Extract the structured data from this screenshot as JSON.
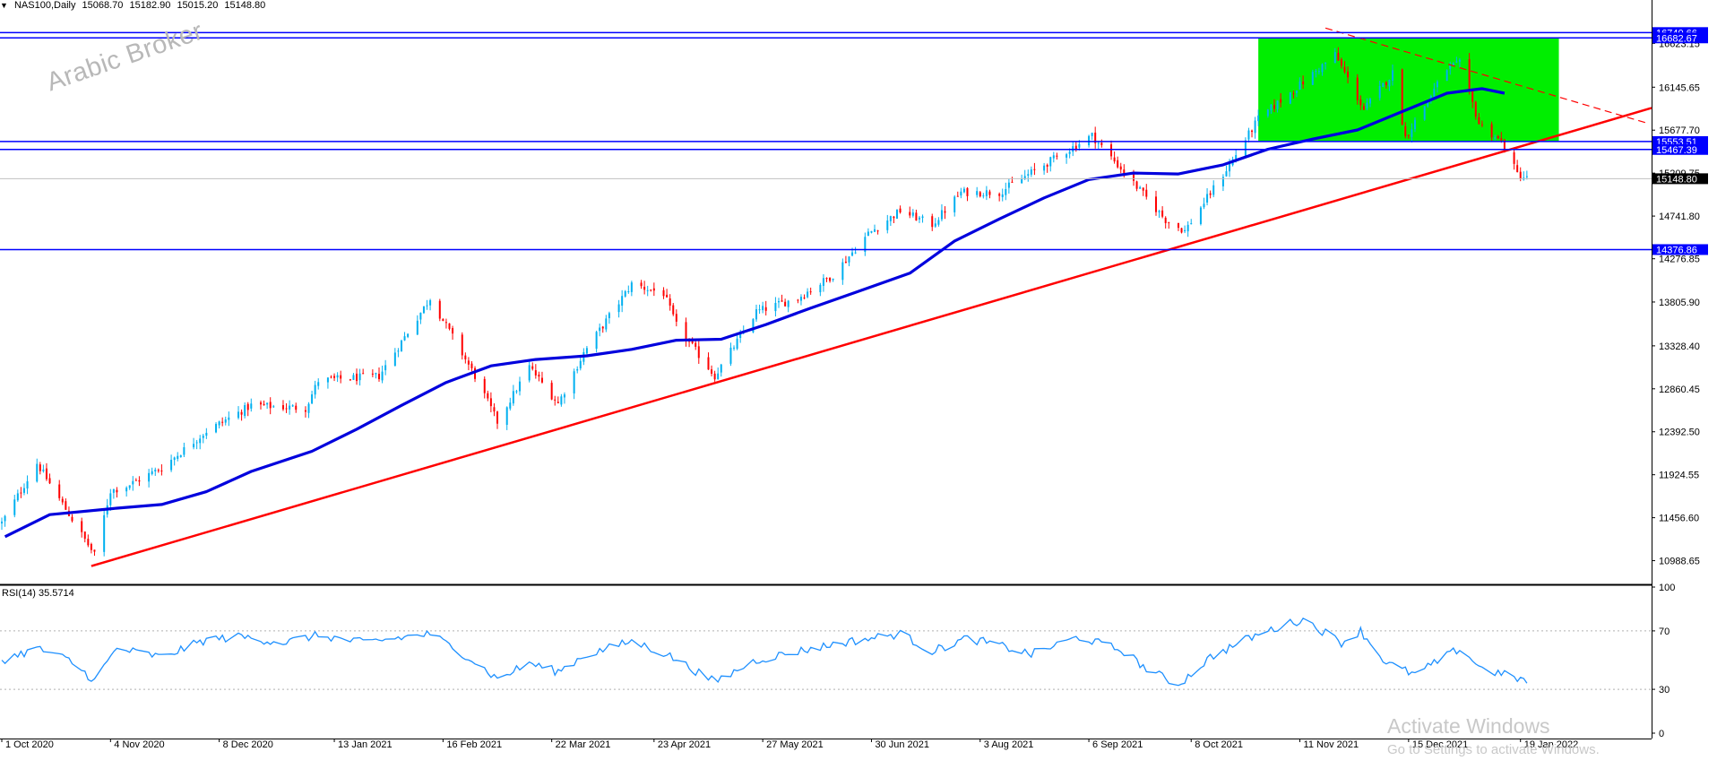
{
  "header": {
    "symbol": "NAS100,Daily",
    "open": "15068.70",
    "high": "15182.90",
    "low": "15015.20",
    "close": "15148.80"
  },
  "watermark": "Arabic Broker",
  "activation": {
    "title": "Activate Windows",
    "subtitle": "Go to Settings to activate Windows."
  },
  "colors": {
    "bull": "#00b0f0",
    "bear": "#ff0000",
    "ma": "#0000dd",
    "level": "#0000ff",
    "trend": "#ff0000",
    "zone": "#00ee00",
    "rsi": "#1e90ff"
  },
  "chart_data": [
    {
      "type": "candlestick",
      "ylim": [
        10750,
        16900
      ],
      "y_ticks": [
        "16623.15",
        "16145.65",
        "15677.70",
        "15209.75",
        "14741.80",
        "14276.85",
        "13805.90",
        "13328.40",
        "12860.45",
        "12392.50",
        "11924.55",
        "11456.60",
        "10988.65"
      ],
      "x_ticks": [
        "1 Oct 2020",
        "4 Nov 2020",
        "8 Dec 2020",
        "13 Jan 2021",
        "16 Feb 2021",
        "22 Mar 2021",
        "23 Apr 2021",
        "27 May 2021",
        "30 Jun 2021",
        "3 Aug 2021",
        "6 Sep 2021",
        "8 Oct 2021",
        "11 Nov 2021",
        "15 Dec 2021",
        "19 Jan 2022"
      ],
      "current_price": "15148.80",
      "horizontal_levels": [
        "16740.66",
        "16682.67",
        "15553.51",
        "15467.39",
        "14376.86"
      ],
      "range_box": {
        "from": "29 Oct 2021",
        "to": "31 Jan 2022",
        "low": 15550,
        "high": 16682
      },
      "trendlines": [
        {
          "style": "solid",
          "from": [
            "29 Oct 2020",
            10930
          ],
          "to": [
            "19 Jan 2022",
            15500
          ]
        },
        {
          "style": "dashed",
          "from": [
            "19 Nov 2021",
            16790
          ],
          "to": [
            "28 Feb 2022",
            15750
          ]
        }
      ],
      "moving_average_points": [
        [
          "2 Oct 2020",
          11250
        ],
        [
          "16 Oct 2020",
          11490
        ],
        [
          "6 Nov 2020",
          11560
        ],
        [
          "20 Nov 2020",
          11600
        ],
        [
          "4 Dec 2020",
          11740
        ],
        [
          "18 Dec 2020",
          11960
        ],
        [
          "6 Jan 2021",
          12180
        ],
        [
          "20 Jan 2021",
          12420
        ],
        [
          "3 Feb 2021",
          12680
        ],
        [
          "17 Feb 2021",
          12930
        ],
        [
          "3 Mar 2021",
          13110
        ],
        [
          "17 Mar 2021",
          13180
        ],
        [
          "2 Apr 2021",
          13220
        ],
        [
          "16 Apr 2021",
          13290
        ],
        [
          "30 Apr 2021",
          13390
        ],
        [
          "14 May 2021",
          13400
        ],
        [
          "28 May 2021",
          13560
        ],
        [
          "11 Jun 2021",
          13740
        ],
        [
          "25 Jun 2021",
          13910
        ],
        [
          "12 Jul 2021",
          14120
        ],
        [
          "26 Jul 2021",
          14470
        ],
        [
          "9 Aug 2021",
          14710
        ],
        [
          "23 Aug 2021",
          14940
        ],
        [
          "6 Sep 2021",
          15140
        ],
        [
          "20 Sep 2021",
          15210
        ],
        [
          "4 Oct 2021",
          15200
        ],
        [
          "18 Oct 2021",
          15300
        ],
        [
          "1 Nov 2021",
          15470
        ],
        [
          "15 Nov 2021",
          15580
        ],
        [
          "29 Nov 2021",
          15680
        ],
        [
          "13 Dec 2021",
          15880
        ],
        [
          "27 Dec 2021",
          16080
        ],
        [
          "7 Jan 2022",
          16130
        ],
        [
          "14 Jan 2022",
          16080
        ]
      ],
      "price_path": [
        [
          "1 Oct 2020",
          11400
        ],
        [
          "12 Oct 2020",
          12050
        ],
        [
          "30 Oct 2020",
          11050
        ],
        [
          "4 Nov 2020",
          11750
        ],
        [
          "9 Nov 2020",
          11800
        ],
        [
          "20 Nov 2020",
          12000
        ],
        [
          "4 Dec 2020",
          12400
        ],
        [
          "18 Dec 2020",
          12680
        ],
        [
          "4 Jan 2021",
          12650
        ],
        [
          "8 Jan 2021",
          12950
        ],
        [
          "27 Jan 2021",
          13000
        ],
        [
          "12 Feb 2021",
          13850
        ],
        [
          "26 Feb 2021",
          13000
        ],
        [
          "5 Mar 2021",
          12500
        ],
        [
          "15 Mar 2021",
          13100
        ],
        [
          "24 Mar 2021",
          12700
        ],
        [
          "1 Apr 2021",
          13250
        ],
        [
          "16 Apr 2021",
          14000
        ],
        [
          "26 Apr 2021",
          13900
        ],
        [
          "30 Apr 2021",
          13550
        ],
        [
          "12 May 2021",
          13000
        ],
        [
          "25 May 2021",
          13700
        ],
        [
          "7 Jun 2021",
          13850
        ],
        [
          "18 Jun 2021",
          14100
        ],
        [
          "29 Jun 2021",
          14550
        ],
        [
          "9 Jul 2021",
          14800
        ],
        [
          "19 Jul 2021",
          14650
        ],
        [
          "28 Jul 2021",
          15000
        ],
        [
          "9 Aug 2021",
          15000
        ],
        [
          "23 Aug 2021",
          15300
        ],
        [
          "7 Sep 2021",
          15620
        ],
        [
          "20 Sep 2021",
          15100
        ],
        [
          "30 Sep 2021",
          14700
        ],
        [
          "6 Oct 2021",
          14580
        ],
        [
          "20 Oct 2021",
          15300
        ],
        [
          "29 Oct 2021",
          15800
        ],
        [
          "12 Nov 2021",
          16200
        ],
        [
          "22 Nov 2021",
          16500
        ],
        [
          "1 Dec 2021",
          15900
        ],
        [
          "10 Dec 2021",
          16300
        ],
        [
          "14 Dec 2021",
          15600
        ],
        [
          "27 Dec 2021",
          16350
        ],
        [
          "31 Dec 2021",
          16400
        ],
        [
          "6 Jan 2022",
          15750
        ],
        [
          "13 Jan 2022",
          15550
        ],
        [
          "18 Jan 2022",
          15200
        ],
        [
          "21 Jan 2022",
          15148.8
        ]
      ]
    },
    {
      "type": "line",
      "title": "RSI(14) 35.5714",
      "ylim": [
        0,
        100
      ],
      "y_ticks": [
        "100",
        "70",
        "30",
        "0"
      ],
      "levels": [
        70,
        30
      ],
      "values_path": [
        [
          "1 Oct 2020",
          50
        ],
        [
          "12 Oct 2020",
          58
        ],
        [
          "22 Oct 2020",
          50
        ],
        [
          "30 Oct 2020",
          36
        ],
        [
          "6 Nov 2020",
          58
        ],
        [
          "20 Nov 2020",
          52
        ],
        [
          "4 Dec 2020",
          64
        ],
        [
          "15 Dec 2020",
          66
        ],
        [
          "28 Dec 2020",
          62
        ],
        [
          "8 Jan 2021",
          67
        ],
        [
          "22 Jan 2021",
          62
        ],
        [
          "12 Feb 2021",
          68
        ],
        [
          "24 Feb 2021",
          52
        ],
        [
          "5 Mar 2021",
          37
        ],
        [
          "15 Mar 2021",
          48
        ],
        [
          "24 Mar 2021",
          42
        ],
        [
          "1 Apr 2021",
          53
        ],
        [
          "16 Apr 2021",
          63
        ],
        [
          "27 Apr 2021",
          54
        ],
        [
          "12 May 2021",
          35
        ],
        [
          "25 May 2021",
          50
        ],
        [
          "7 Jun 2021",
          56
        ],
        [
          "21 Jun 2021",
          62
        ],
        [
          "9 Jul 2021",
          68
        ],
        [
          "19 Jul 2021",
          56
        ],
        [
          "30 Jul 2021",
          65
        ],
        [
          "9 Aug 2021",
          60
        ],
        [
          "19 Aug 2021",
          54
        ],
        [
          "3 Sep 2021",
          66
        ],
        [
          "17 Sep 2021",
          56
        ],
        [
          "24 Sep 2021",
          44
        ],
        [
          "4 Oct 2021",
          33
        ],
        [
          "14 Oct 2021",
          52
        ],
        [
          "26 Oct 2021",
          65
        ],
        [
          "5 Nov 2021",
          73
        ],
        [
          "12 Nov 2021",
          78
        ],
        [
          "24 Nov 2021",
          62
        ],
        [
          "30 Nov 2021",
          70
        ],
        [
          "8 Dec 2021",
          48
        ],
        [
          "17 Dec 2021",
          40
        ],
        [
          "31 Dec 2021",
          58
        ],
        [
          "7 Jan 2022",
          44
        ],
        [
          "14 Jan 2022",
          40
        ],
        [
          "21 Jan 2022",
          35.57
        ]
      ]
    }
  ]
}
